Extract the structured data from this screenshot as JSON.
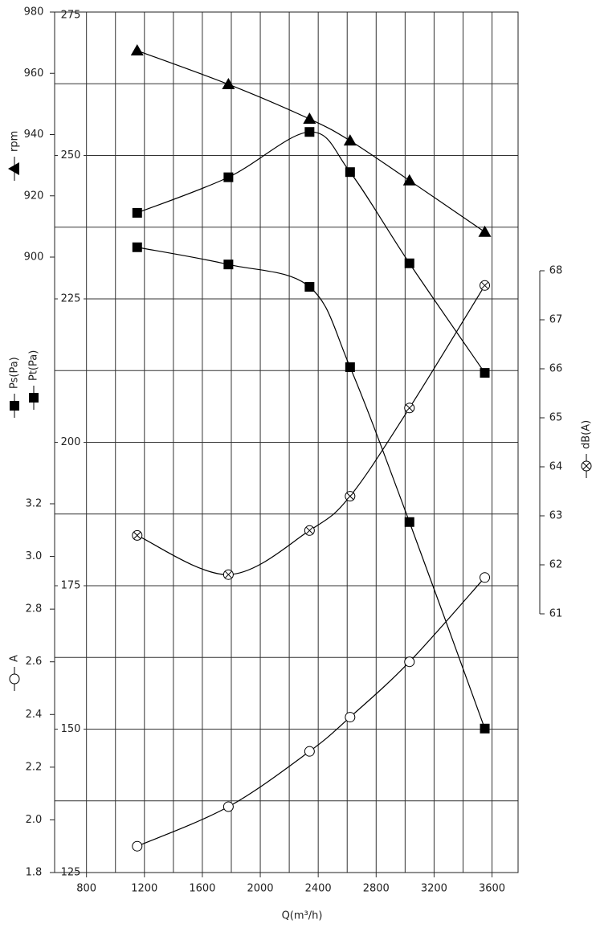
{
  "chart_data": {
    "type": "line",
    "x_label": "Q(m³/h)",
    "x": [
      1150,
      1780,
      2340,
      2620,
      3030,
      3550
    ],
    "xlim": [
      580,
      3780
    ],
    "xticks": [
      800,
      1200,
      1600,
      2000,
      2400,
      2800,
      3200,
      3600
    ],
    "x_minor_ticks": [
      1000,
      1400,
      1800,
      2200,
      2600,
      3000,
      3400
    ],
    "ylim": [
      125,
      275
    ],
    "yticks": [
      125,
      150,
      175,
      200,
      225,
      250,
      275
    ],
    "y_minor_ticks": [
      137.5,
      162.5,
      187.5,
      212.5,
      237.5,
      262.5
    ],
    "grid": true,
    "axes": [
      {
        "id": "rpm",
        "label": "rpm",
        "lim": [
          900,
          980
        ],
        "ticks": [
          900,
          920,
          940,
          960,
          980
        ]
      },
      {
        "id": "pa",
        "label": "Ps(Pa)",
        "label2": "Pt(Pa)"
      },
      {
        "id": "a",
        "label": "A",
        "lim": [
          1.8,
          3.2
        ],
        "ticks": [
          1.8,
          {
            "value": 2,
            "label": "2.0"
          },
          2.2,
          2.4,
          2.6,
          2.8,
          {
            "value": 3,
            "label": "3.0"
          },
          3.2
        ]
      },
      {
        "id": "db",
        "label": "dB(A)",
        "lim": [
          61,
          68
        ],
        "ticks": [
          61,
          62,
          63,
          64,
          65,
          66,
          67,
          68
        ]
      }
    ],
    "series": [
      {
        "name": "rpm",
        "axis": "rpm",
        "marker": "triangle",
        "color": "#000000",
        "values": [
          967.4,
          956.4,
          945.1,
          938,
          925,
          908.2
        ]
      },
      {
        "name": "Pt(Pa)",
        "axis": "pa",
        "marker": "square",
        "color": "#000000",
        "values": [
          240.0,
          246.2,
          254.1,
          247.1,
          231.2,
          212.1
        ]
      },
      {
        "name": "Ps(Pa)",
        "axis": "pa",
        "marker": "square",
        "color": "#000000",
        "values": [
          234.0,
          231.0,
          227.1,
          213.1,
          186.1,
          150.1
        ]
      },
      {
        "name": "dB(A)",
        "axis": "db",
        "marker": "crossed-circle",
        "color": "#000000",
        "values": [
          62.6,
          61.8,
          62.7,
          63.4,
          65.2,
          67.7
        ]
      },
      {
        "name": "A",
        "axis": "a",
        "marker": "circle",
        "color": "#000000",
        "values": [
          1.9,
          2.05,
          2.26,
          2.39,
          2.6,
          2.92
        ]
      }
    ]
  }
}
